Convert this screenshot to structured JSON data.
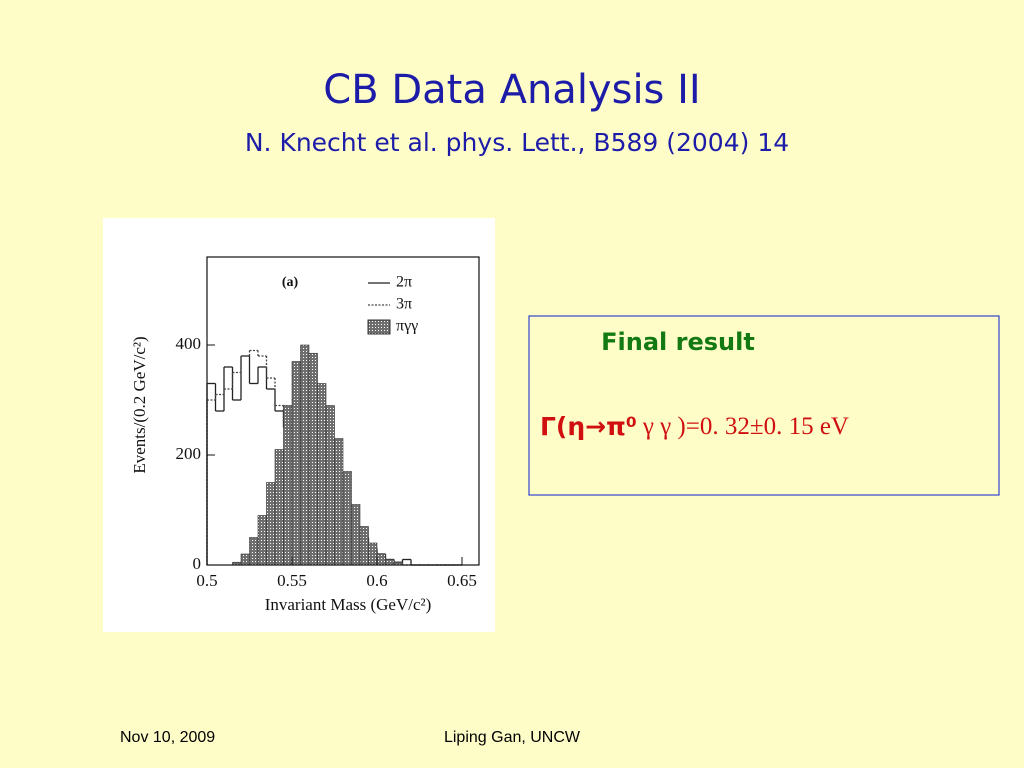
{
  "title": "CB Data Analysis II",
  "subtitle": "N. Knecht et al. phys. Lett., B589 (2004) 14",
  "chart_data": {
    "type": "histogram",
    "label": "(a)",
    "y_label": "Events/(0.2 GeV/c²)",
    "x_label": "Invariant Mass (GeV/c²)",
    "bins": [
      0.5,
      0.505,
      0.51,
      0.515,
      0.52,
      0.525,
      0.53,
      0.535,
      0.54,
      0.545,
      0.55,
      0.555,
      0.56,
      0.565,
      0.57,
      0.575,
      0.58,
      0.585,
      0.59,
      0.595,
      0.6,
      0.605,
      0.61,
      0.615,
      0.62,
      0.625,
      0.63,
      0.635,
      0.64,
      0.645,
      0.65
    ],
    "series": [
      {
        "name": "2π",
        "color": "#222222",
        "style": "solid",
        "values": [
          330,
          280,
          360,
          300,
          380,
          330,
          360,
          320,
          280,
          250,
          220,
          230,
          200,
          170,
          160,
          130,
          100,
          70,
          50,
          30,
          20,
          10,
          5,
          10,
          0,
          0,
          0,
          0,
          0,
          0
        ]
      },
      {
        "name": "3π",
        "color": "#444444",
        "style": "dotted",
        "values": [
          300,
          310,
          320,
          350,
          380,
          390,
          380,
          340,
          290,
          260,
          240,
          220,
          200,
          170,
          150,
          120,
          90,
          60,
          40,
          25,
          15,
          10,
          5,
          0,
          0,
          0,
          0,
          0,
          0,
          0
        ]
      },
      {
        "name": "πγγ",
        "color": "#6e6e6e",
        "style": "shaded",
        "values": [
          0,
          0,
          0,
          5,
          20,
          50,
          90,
          150,
          210,
          290,
          370,
          400,
          385,
          330,
          290,
          230,
          170,
          110,
          70,
          40,
          20,
          10,
          5,
          0,
          0,
          0,
          0,
          0,
          0,
          0
        ]
      }
    ],
    "xlim": [
      0.5,
      0.66
    ],
    "ylim": [
      0,
      560
    ],
    "xticks": [
      0.5,
      0.55,
      0.6,
      0.65
    ],
    "yticks": [
      0,
      200,
      400
    ]
  },
  "result": {
    "heading": "Final result",
    "formula": [
      "Γ(η→π⁰",
      "γ γ )=0. 32±0. 15 eV"
    ]
  },
  "footer": {
    "date": "Nov 10, 2009",
    "author": "Liping Gan, UNCW"
  }
}
